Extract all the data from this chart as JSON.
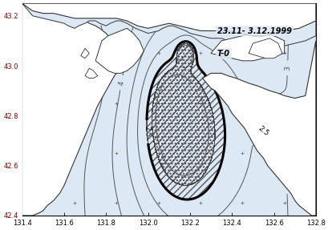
{
  "title_line1": "23.11- 3.12.1999",
  "title_line2": "T-0",
  "xlim": [
    131.4,
    132.8
  ],
  "ylim": [
    42.4,
    43.25
  ],
  "xticks": [
    131.4,
    131.6,
    131.8,
    132.0,
    132.2,
    132.4,
    132.6,
    132.8
  ],
  "yticks": [
    42.4,
    42.6,
    42.8,
    43.0,
    43.2
  ],
  "background_sea": "#dde8f5",
  "background_land": "#ffffff",
  "contour_color": "#555555",
  "bold_contour_value": 2.5,
  "contour_levels": [
    2.0,
    2.5,
    3.0,
    3.5,
    4.0,
    4.5,
    5.0,
    5.5
  ],
  "figsize": [
    4.1,
    2.87
  ],
  "dpi": 100
}
